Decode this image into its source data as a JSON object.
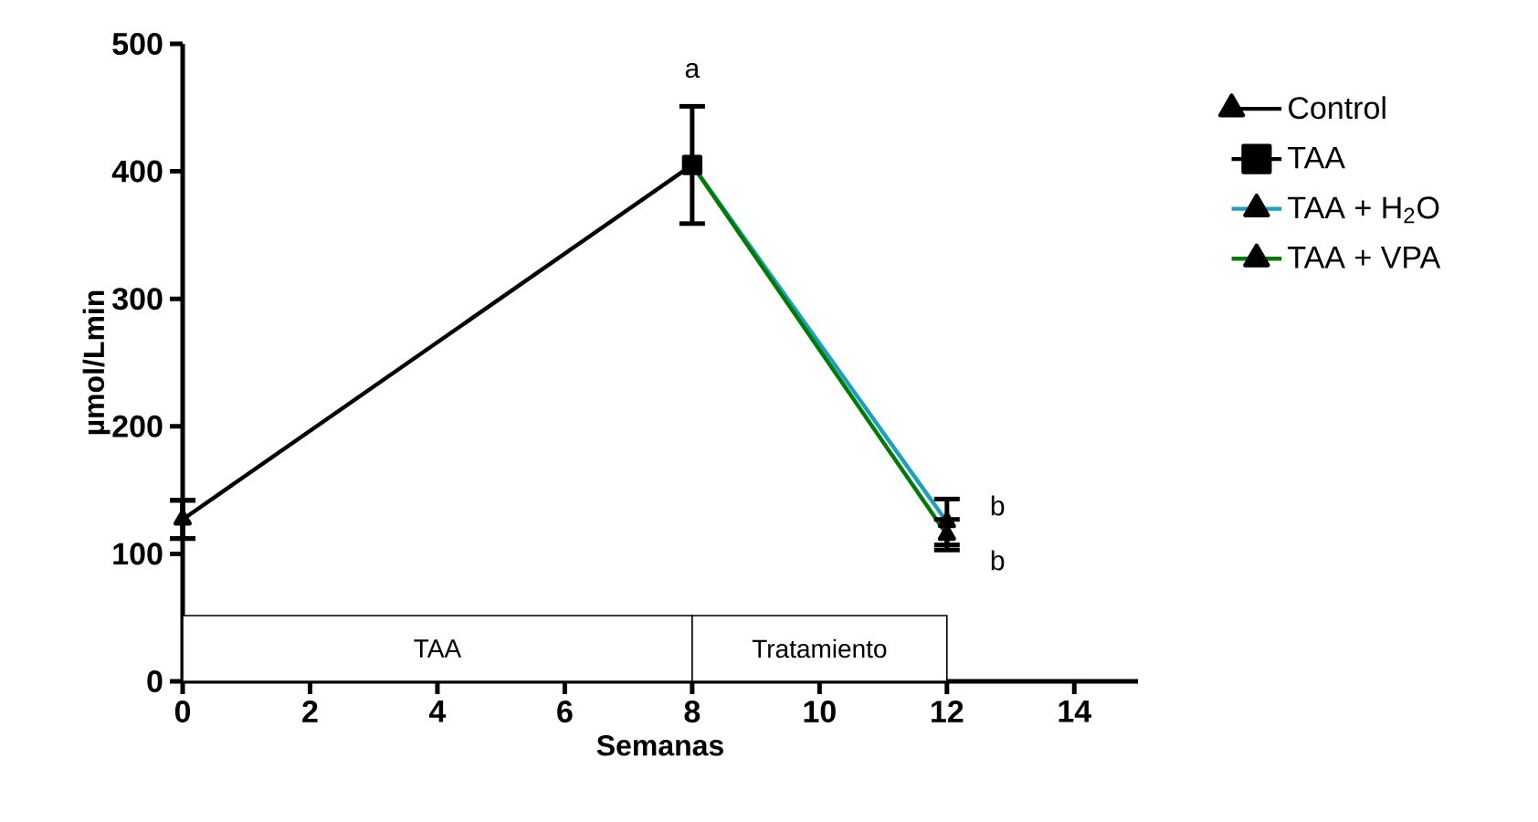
{
  "chart_data": {
    "type": "line",
    "xlabel": "Semanas",
    "ylabel": "µmol/Lmin",
    "xlim": [
      0,
      15
    ],
    "xticks": [
      0,
      2,
      4,
      6,
      8,
      10,
      12,
      14
    ],
    "ylim": [
      0,
      500
    ],
    "yticks": [
      0,
      100,
      200,
      300,
      400,
      500
    ],
    "series": [
      {
        "name": "Control",
        "color": "#000000",
        "marker": "triangle",
        "x": [
          0
        ],
        "values": [
          127
        ],
        "errors": [
          15
        ]
      },
      {
        "name": "TAA",
        "color": "#000000",
        "marker": "square",
        "x": [
          0,
          8
        ],
        "values": [
          127,
          405
        ],
        "errors": [
          15,
          46
        ]
      },
      {
        "name": "TAA + H$_{2}$O",
        "color": "#1ba0c0",
        "marker": "triangle",
        "x": [
          8,
          12
        ],
        "values": [
          405,
          125
        ],
        "errors": [
          null,
          18
        ]
      },
      {
        "name": "TAA + VPA",
        "color": "#007a00",
        "marker": "triangle",
        "x": [
          8,
          12
        ],
        "values": [
          405,
          115
        ],
        "errors": [
          null,
          12
        ]
      }
    ],
    "bands": [
      {
        "axis": "x",
        "from": 0,
        "to": 8,
        "label": "TAA"
      },
      {
        "axis": "x",
        "from": 8,
        "to": 12,
        "label": "Tratamiento"
      }
    ],
    "annotations": [
      "a",
      {
        "text": "b",
        "x": 12,
        "y": 125
      },
      {
        "text": "b",
        "x": 12,
        "y": 115
      }
    ],
    "legend": "right",
    "grid": false
  }
}
